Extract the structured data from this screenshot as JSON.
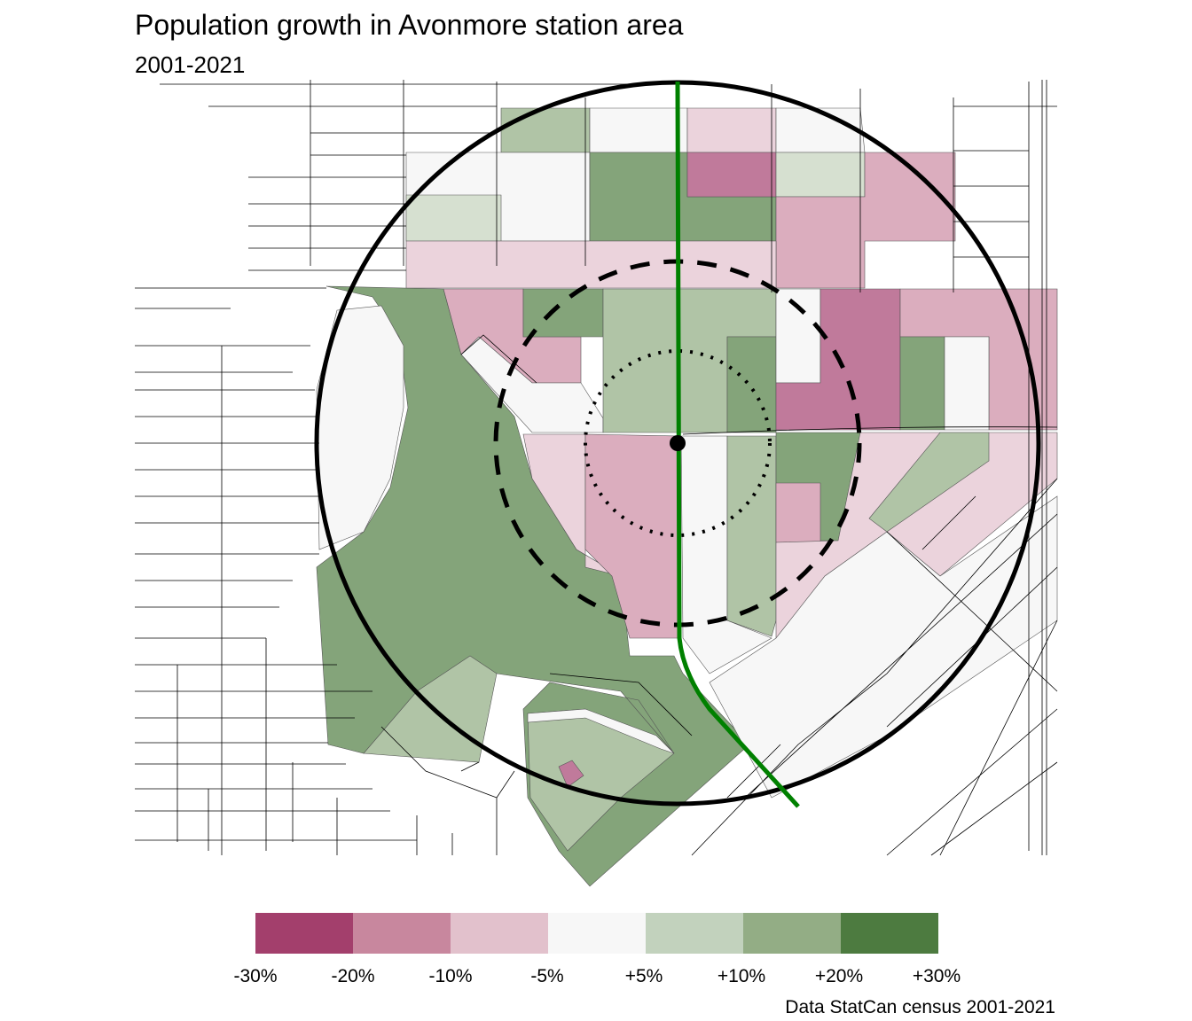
{
  "title": "Population growth in Avonmore station area",
  "subtitle": "2001-2021",
  "legend": {
    "labels": [
      "-30%",
      "-20%",
      "-10%",
      "-5%",
      "+5%",
      "+10%",
      "+20%",
      "+30%"
    ],
    "colors": [
      "#a33f6c",
      "#c8879e",
      "#e2c1cc",
      "#f7f7f7",
      "#c2d2bd",
      "#93ad85",
      "#4d7b40"
    ]
  },
  "caption": "Data StatCan census 2001-2021",
  "map_colors": {
    "transit_line": "#008000",
    "rings": "#000000"
  }
}
